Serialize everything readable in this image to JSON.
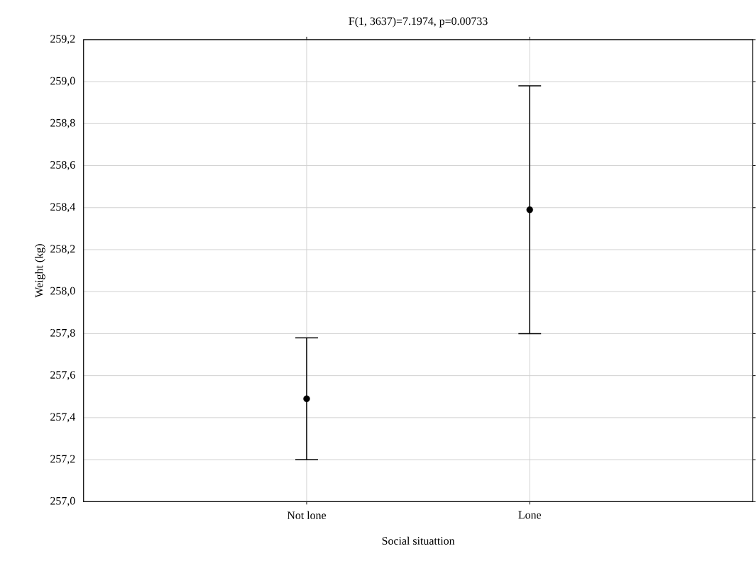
{
  "chart_data": {
    "type": "scatter",
    "title": "F(1, 3637)=7.1974, p=0.00733",
    "xlabel": "Social situattion",
    "ylabel": "Weight (kg)",
    "categories": [
      "Not lone",
      "Lone"
    ],
    "values": [
      257.49,
      258.39
    ],
    "errors": [
      0.29,
      0.59
    ],
    "color": "#000000",
    "marker": "circle",
    "grid": true,
    "ylim": [
      257.0,
      259.2
    ],
    "yticks": [
      {
        "value": 257.0,
        "label": "257,0"
      },
      {
        "value": 257.2,
        "label": "257,2"
      },
      {
        "value": 257.4,
        "label": "257,4"
      },
      {
        "value": 257.6,
        "label": "257,6"
      },
      {
        "value": 257.8,
        "label": "257,8"
      },
      {
        "value": 258.0,
        "label": "258,0"
      },
      {
        "value": 258.2,
        "label": "258,2"
      },
      {
        "value": 258.4,
        "label": "258,4"
      },
      {
        "value": 258.6,
        "label": "258,6"
      },
      {
        "value": 258.8,
        "label": "258,8"
      },
      {
        "value": 259.0,
        "label": "259,0"
      },
      {
        "value": 259.2,
        "label": "259,2"
      }
    ]
  }
}
